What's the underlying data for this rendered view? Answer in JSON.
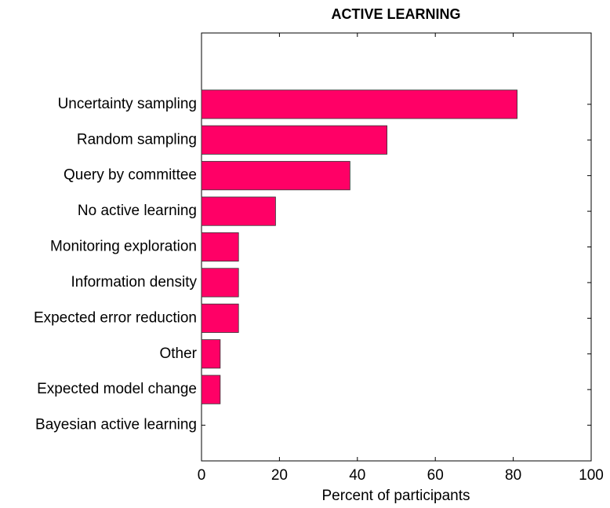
{
  "chart_data": {
    "type": "barh",
    "title": "ACTIVE LEARNING",
    "x_label": "Percent of participants",
    "categories": [
      "Uncertainty sampling",
      "Random sampling",
      "Query by committee",
      "No active learning",
      "Monitoring exploration",
      "Information density",
      "Expected error reduction",
      "Other",
      "Expected model change",
      "Bayesian active learning"
    ],
    "values": [
      81,
      47.6,
      38.1,
      19,
      9.5,
      9.5,
      9.5,
      4.8,
      4.8,
      0
    ],
    "color": "#ff0066",
    "xlim": [
      0,
      100
    ],
    "xticks": [
      0,
      20,
      40,
      60,
      80,
      100
    ]
  }
}
